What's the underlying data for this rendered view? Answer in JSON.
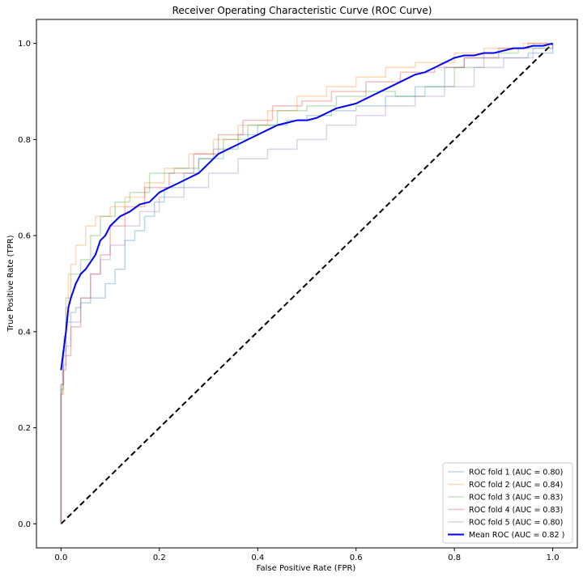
{
  "chart_data": {
    "type": "line",
    "title": "Receiver Operating Characteristic Curve (ROC Curve)",
    "xlabel": "False Positive Rate (FPR)",
    "ylabel": "True Positive Rate (TPR)",
    "xlim": [
      -0.05,
      1.05
    ],
    "ylim": [
      -0.05,
      1.05
    ],
    "xticks": [
      "0.0",
      "0.2",
      "0.4",
      "0.6",
      "0.8",
      "1.0"
    ],
    "yticks": [
      "0.0",
      "0.2",
      "0.4",
      "0.6",
      "0.8",
      "1.0"
    ],
    "grid": false,
    "legend_position": "lower-right",
    "series": [
      {
        "name": "ROC fold 1 (AUC = 0.80)",
        "color": "#1f77b4",
        "opacity": 0.3,
        "step": true,
        "x": [
          0.0,
          0.0,
          0.003,
          0.003,
          0.006,
          0.006,
          0.01,
          0.01,
          0.02,
          0.02,
          0.03,
          0.03,
          0.04,
          0.04,
          0.06,
          0.06,
          0.07,
          0.07,
          0.09,
          0.09,
          0.11,
          0.11,
          0.13,
          0.13,
          0.15,
          0.15,
          0.17,
          0.17,
          0.19,
          0.19,
          0.21,
          0.21,
          0.25,
          0.25,
          0.28,
          0.28,
          0.31,
          0.31,
          0.36,
          0.36,
          0.4,
          0.4,
          0.46,
          0.46,
          0.5,
          0.5,
          0.55,
          0.55,
          0.6,
          0.6,
          0.66,
          0.66,
          0.72,
          0.72,
          0.78,
          0.78,
          0.82,
          0.82,
          0.88,
          0.88,
          0.95,
          0.95,
          1.0,
          1.0
        ],
        "y": [
          0.0,
          0.27,
          0.27,
          0.36,
          0.36,
          0.39,
          0.39,
          0.42,
          0.42,
          0.44,
          0.44,
          0.45,
          0.45,
          0.46,
          0.46,
          0.47,
          0.47,
          0.47,
          0.47,
          0.5,
          0.5,
          0.53,
          0.53,
          0.59,
          0.59,
          0.61,
          0.61,
          0.64,
          0.64,
          0.67,
          0.67,
          0.7,
          0.7,
          0.73,
          0.73,
          0.76,
          0.76,
          0.78,
          0.78,
          0.81,
          0.81,
          0.83,
          0.83,
          0.84,
          0.84,
          0.85,
          0.85,
          0.86,
          0.86,
          0.87,
          0.87,
          0.89,
          0.89,
          0.91,
          0.91,
          0.95,
          0.95,
          0.97,
          0.97,
          0.97,
          0.97,
          0.98,
          0.98,
          1.0
        ]
      },
      {
        "name": "ROC fold 2 (AUC = 0.84)",
        "color": "#ff7f0e",
        "opacity": 0.3,
        "step": true,
        "x": [
          0.0,
          0.0,
          0.005,
          0.005,
          0.01,
          0.01,
          0.015,
          0.015,
          0.02,
          0.02,
          0.03,
          0.03,
          0.05,
          0.05,
          0.07,
          0.07,
          0.1,
          0.1,
          0.13,
          0.13,
          0.17,
          0.17,
          0.21,
          0.21,
          0.26,
          0.26,
          0.31,
          0.31,
          0.36,
          0.36,
          0.42,
          0.42,
          0.48,
          0.48,
          0.54,
          0.54,
          0.6,
          0.6,
          0.66,
          0.66,
          0.72,
          0.72,
          0.8,
          0.8,
          0.86,
          0.86,
          0.94,
          0.94,
          1.0,
          1.0
        ],
        "y": [
          0.0,
          0.27,
          0.27,
          0.35,
          0.35,
          0.45,
          0.45,
          0.52,
          0.52,
          0.54,
          0.54,
          0.58,
          0.58,
          0.62,
          0.62,
          0.64,
          0.64,
          0.66,
          0.66,
          0.68,
          0.68,
          0.71,
          0.71,
          0.74,
          0.74,
          0.77,
          0.77,
          0.8,
          0.8,
          0.83,
          0.83,
          0.86,
          0.86,
          0.89,
          0.89,
          0.91,
          0.91,
          0.93,
          0.93,
          0.95,
          0.95,
          0.96,
          0.96,
          0.98,
          0.98,
          0.99,
          0.99,
          1.0,
          1.0,
          1.0
        ]
      },
      {
        "name": "ROC fold 3 (AUC = 0.83)",
        "color": "#2ca02c",
        "opacity": 0.3,
        "step": true,
        "x": [
          0.0,
          0.0,
          0.005,
          0.005,
          0.01,
          0.01,
          0.02,
          0.02,
          0.04,
          0.04,
          0.06,
          0.06,
          0.08,
          0.08,
          0.11,
          0.11,
          0.14,
          0.14,
          0.18,
          0.18,
          0.23,
          0.23,
          0.28,
          0.28,
          0.33,
          0.33,
          0.38,
          0.38,
          0.44,
          0.44,
          0.5,
          0.5,
          0.56,
          0.56,
          0.62,
          0.62,
          0.68,
          0.68,
          0.74,
          0.74,
          0.8,
          0.8,
          0.86,
          0.86,
          0.93,
          0.93,
          1.0,
          1.0
        ],
        "y": [
          0.0,
          0.28,
          0.28,
          0.36,
          0.36,
          0.47,
          0.47,
          0.52,
          0.52,
          0.55,
          0.55,
          0.6,
          0.6,
          0.64,
          0.64,
          0.67,
          0.67,
          0.69,
          0.69,
          0.73,
          0.73,
          0.74,
          0.74,
          0.76,
          0.76,
          0.8,
          0.8,
          0.83,
          0.83,
          0.86,
          0.86,
          0.87,
          0.87,
          0.89,
          0.89,
          0.9,
          0.9,
          0.89,
          0.89,
          0.91,
          0.91,
          0.95,
          0.95,
          0.98,
          0.98,
          0.99,
          0.99,
          1.0
        ]
      },
      {
        "name": "ROC fold 4 (AUC = 0.83)",
        "color": "#d62728",
        "opacity": 0.3,
        "step": true,
        "x": [
          0.0,
          0.0,
          0.005,
          0.005,
          0.01,
          0.01,
          0.02,
          0.02,
          0.04,
          0.04,
          0.06,
          0.06,
          0.08,
          0.08,
          0.1,
          0.1,
          0.13,
          0.13,
          0.17,
          0.17,
          0.22,
          0.22,
          0.27,
          0.27,
          0.32,
          0.32,
          0.37,
          0.37,
          0.43,
          0.43,
          0.49,
          0.49,
          0.55,
          0.55,
          0.62,
          0.62,
          0.69,
          0.69,
          0.76,
          0.76,
          0.82,
          0.82,
          0.89,
          0.89,
          0.95,
          0.95,
          1.0,
          1.0
        ],
        "y": [
          0.0,
          0.29,
          0.29,
          0.32,
          0.32,
          0.35,
          0.35,
          0.41,
          0.41,
          0.47,
          0.47,
          0.52,
          0.52,
          0.56,
          0.56,
          0.62,
          0.62,
          0.66,
          0.66,
          0.7,
          0.7,
          0.73,
          0.73,
          0.77,
          0.77,
          0.81,
          0.81,
          0.84,
          0.84,
          0.87,
          0.87,
          0.88,
          0.88,
          0.9,
          0.9,
          0.92,
          0.92,
          0.94,
          0.94,
          0.95,
          0.95,
          0.97,
          0.97,
          0.99,
          0.99,
          1.0,
          1.0,
          1.0
        ]
      },
      {
        "name": "ROC fold 5 (AUC = 0.80)",
        "color": "#9467bd",
        "opacity": 0.3,
        "step": true,
        "x": [
          0.0,
          0.0,
          0.005,
          0.005,
          0.01,
          0.01,
          0.02,
          0.02,
          0.04,
          0.04,
          0.06,
          0.06,
          0.08,
          0.08,
          0.1,
          0.1,
          0.13,
          0.13,
          0.16,
          0.16,
          0.2,
          0.2,
          0.25,
          0.25,
          0.3,
          0.3,
          0.36,
          0.36,
          0.42,
          0.42,
          0.48,
          0.48,
          0.54,
          0.54,
          0.6,
          0.6,
          0.66,
          0.66,
          0.72,
          0.72,
          0.78,
          0.78,
          0.84,
          0.84,
          0.9,
          0.9,
          0.96,
          0.96,
          1.0,
          1.0
        ],
        "y": [
          0.0,
          0.29,
          0.29,
          0.33,
          0.33,
          0.37,
          0.37,
          0.42,
          0.42,
          0.47,
          0.47,
          0.52,
          0.52,
          0.55,
          0.55,
          0.58,
          0.58,
          0.62,
          0.62,
          0.65,
          0.65,
          0.68,
          0.68,
          0.7,
          0.7,
          0.73,
          0.73,
          0.76,
          0.76,
          0.78,
          0.78,
          0.8,
          0.8,
          0.83,
          0.83,
          0.85,
          0.85,
          0.87,
          0.87,
          0.89,
          0.89,
          0.91,
          0.91,
          0.95,
          0.95,
          0.97,
          0.97,
          0.99,
          0.99,
          1.0
        ]
      },
      {
        "name": "Mean ROC (AUC = 0.82 )",
        "color": "#0000ff",
        "opacity": 1.0,
        "width": 2,
        "step": false,
        "x": [
          0.0,
          0.005,
          0.01,
          0.015,
          0.02,
          0.03,
          0.04,
          0.05,
          0.06,
          0.07,
          0.08,
          0.09,
          0.1,
          0.12,
          0.14,
          0.16,
          0.18,
          0.2,
          0.22,
          0.24,
          0.26,
          0.28,
          0.3,
          0.32,
          0.34,
          0.36,
          0.38,
          0.4,
          0.42,
          0.44,
          0.46,
          0.48,
          0.5,
          0.52,
          0.54,
          0.56,
          0.58,
          0.6,
          0.62,
          0.64,
          0.66,
          0.68,
          0.7,
          0.72,
          0.74,
          0.76,
          0.78,
          0.8,
          0.82,
          0.84,
          0.86,
          0.88,
          0.9,
          0.92,
          0.94,
          0.96,
          0.98,
          1.0
        ],
        "y": [
          0.32,
          0.36,
          0.4,
          0.45,
          0.47,
          0.5,
          0.52,
          0.53,
          0.545,
          0.56,
          0.59,
          0.6,
          0.62,
          0.64,
          0.65,
          0.665,
          0.67,
          0.69,
          0.7,
          0.71,
          0.72,
          0.73,
          0.75,
          0.77,
          0.78,
          0.79,
          0.8,
          0.81,
          0.82,
          0.83,
          0.835,
          0.84,
          0.84,
          0.845,
          0.855,
          0.865,
          0.87,
          0.875,
          0.885,
          0.895,
          0.905,
          0.915,
          0.925,
          0.935,
          0.94,
          0.95,
          0.96,
          0.97,
          0.975,
          0.975,
          0.98,
          0.98,
          0.985,
          0.99,
          0.99,
          0.995,
          0.995,
          1.0
        ]
      }
    ],
    "chance_line": {
      "color": "#000000",
      "style": "dashed",
      "x": [
        0.0,
        1.0
      ],
      "y": [
        0.0,
        1.0
      ]
    }
  }
}
